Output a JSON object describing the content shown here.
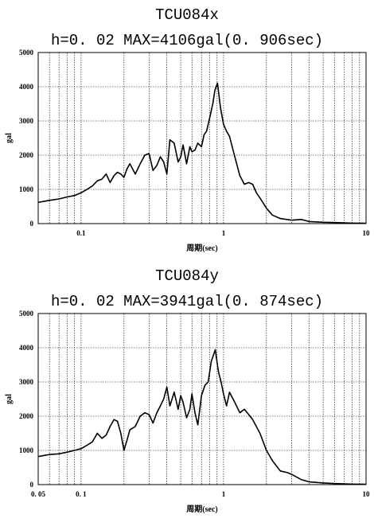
{
  "chart_data": [
    {
      "type": "line",
      "title": "TCU084x",
      "subtitle": "h=0. 02   MAX=4106gal(0. 906sec)",
      "xlabel": "周期(sec)",
      "ylabel": "gal",
      "xscale": "log",
      "xlim": [
        0.05,
        10
      ],
      "ylim": [
        0,
        5000
      ],
      "x_tick_labels": [
        "0.1",
        "1",
        "10"
      ],
      "y_tick_labels": [
        "0",
        "1000",
        "2000",
        "3000",
        "4000",
        "5000"
      ],
      "grid": true,
      "series": [
        {
          "x": [
            0.05,
            0.06,
            0.07,
            0.08,
            0.09,
            0.1,
            0.11,
            0.12,
            0.13,
            0.14,
            0.15,
            0.16,
            0.17,
            0.18,
            0.19,
            0.2,
            0.21,
            0.22,
            0.24,
            0.26,
            0.28,
            0.3,
            0.32,
            0.34,
            0.36,
            0.38,
            0.4,
            0.42,
            0.45,
            0.48,
            0.5,
            0.52,
            0.55,
            0.58,
            0.6,
            0.63,
            0.66,
            0.7,
            0.73,
            0.76,
            0.8,
            0.84,
            0.87,
            0.906,
            0.95,
            1.0,
            1.05,
            1.1,
            1.2,
            1.3,
            1.4,
            1.5,
            1.6,
            1.7,
            1.8,
            2.0,
            2.2,
            2.5,
            3.0,
            3.5,
            4.0,
            5.0,
            6.0,
            7.0,
            8.0,
            10.0
          ],
          "y": [
            620,
            680,
            720,
            780,
            820,
            900,
            1000,
            1100,
            1250,
            1300,
            1450,
            1200,
            1400,
            1500,
            1450,
            1350,
            1600,
            1750,
            1450,
            1750,
            2000,
            2050,
            1550,
            1700,
            1950,
            1800,
            1450,
            2450,
            2350,
            1800,
            1950,
            2300,
            1750,
            2250,
            2100,
            2150,
            2350,
            2250,
            2600,
            2700,
            3100,
            3500,
            3900,
            4106,
            3400,
            2900,
            2700,
            2550,
            1950,
            1400,
            1150,
            1200,
            1150,
            900,
            750,
            450,
            250,
            150,
            100,
            120,
            60,
            40,
            30,
            20,
            15,
            10
          ]
        }
      ]
    },
    {
      "type": "line",
      "title": "TCU084y",
      "subtitle": "h=0. 02   MAX=3941gal(0. 874sec)",
      "xlabel": "周期(sec)",
      "ylabel": "gal",
      "xscale": "log",
      "xlim": [
        0.05,
        10
      ],
      "ylim": [
        0,
        5000
      ],
      "x_tick_labels": [
        "0. 05",
        "0. 1",
        "1",
        "10"
      ],
      "y_tick_labels": [
        "0",
        "1000",
        "2000",
        "3000",
        "4000",
        "5000"
      ],
      "grid": true,
      "series": [
        {
          "x": [
            0.05,
            0.06,
            0.07,
            0.08,
            0.09,
            0.1,
            0.11,
            0.12,
            0.13,
            0.14,
            0.15,
            0.16,
            0.17,
            0.18,
            0.19,
            0.2,
            0.21,
            0.22,
            0.24,
            0.26,
            0.28,
            0.3,
            0.32,
            0.34,
            0.36,
            0.38,
            0.4,
            0.42,
            0.45,
            0.48,
            0.5,
            0.52,
            0.55,
            0.58,
            0.6,
            0.63,
            0.66,
            0.7,
            0.74,
            0.78,
            0.82,
            0.874,
            0.92,
            0.96,
            1.0,
            1.05,
            1.1,
            1.2,
            1.3,
            1.4,
            1.5,
            1.6,
            1.8,
            2.0,
            2.2,
            2.5,
            2.8,
            3.0,
            3.5,
            4.0,
            5.0,
            6.0,
            7.0,
            8.0,
            10.0
          ],
          "y": [
            820,
            880,
            900,
            950,
            1000,
            1050,
            1150,
            1250,
            1500,
            1350,
            1450,
            1700,
            1900,
            1850,
            1500,
            1000,
            1300,
            1600,
            1700,
            2000,
            2100,
            2050,
            1800,
            2100,
            2300,
            2500,
            2850,
            2300,
            2700,
            2200,
            2600,
            2400,
            1950,
            2200,
            2650,
            2100,
            1750,
            2600,
            2900,
            3000,
            3600,
            3941,
            3300,
            3000,
            2650,
            2300,
            2700,
            2400,
            2100,
            2200,
            2050,
            1900,
            1500,
            1000,
            700,
            400,
            350,
            300,
            150,
            80,
            50,
            30,
            20,
            15,
            10
          ]
        }
      ]
    }
  ]
}
